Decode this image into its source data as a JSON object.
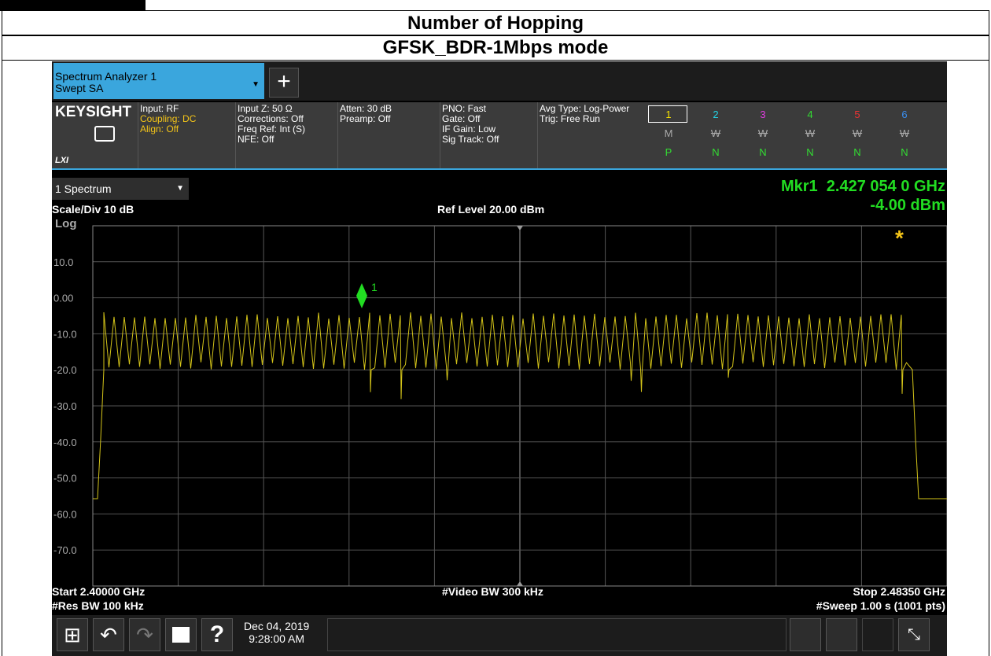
{
  "header": {
    "title": "Number of Hopping",
    "subtitle": "GFSK_BDR-1Mbps mode"
  },
  "app": {
    "tab_title": "Spectrum Analyzer 1",
    "tab_subtitle": "Swept SA",
    "brand": "KEYSIGHT",
    "lxi": "LXI"
  },
  "settings": [
    [
      "Input: RF",
      "Coupling: DC",
      "Align: Off"
    ],
    [
      "Input Z: 50 Ω",
      "Corrections: Off",
      "Freq Ref: Int (S)",
      "NFE: Off"
    ],
    [
      "Atten: 30 dB",
      "Preamp: Off"
    ],
    [
      "PNO: Fast",
      "Gate: Off",
      "IF Gain: Low",
      "Sig Track: Off"
    ],
    [
      "Avg Type: Log-Power",
      "Trig: Free Run"
    ]
  ],
  "traces": {
    "numbers": [
      "1",
      "2",
      "3",
      "4",
      "5",
      "6"
    ],
    "modes": [
      "M",
      "W",
      "W",
      "W",
      "W",
      "W"
    ],
    "detectors": [
      "P",
      "N",
      "N",
      "N",
      "N",
      "N"
    ]
  },
  "window": "1 Spectrum",
  "marker": {
    "readout": "Mkr1  2.427 054 0 GHz",
    "level": "-4.00 dBm",
    "label": "1"
  },
  "scale": "Scale/Div 10 dB",
  "ref_level": "Ref Level 20.00 dBm",
  "log": "Log",
  "y_labels": [
    "10.0",
    "0.00",
    "-10.0",
    "-20.0",
    "-30.0",
    "-40.0",
    "-50.0",
    "-60.0",
    "-70.0"
  ],
  "footer": {
    "start": "Start 2.40000 GHz",
    "vbw": "#Video BW 300 kHz",
    "stop": "Stop 2.48350 GHz",
    "rbw": "#Res BW 100 kHz",
    "sweep": "#Sweep 1.00 s (1001 pts)"
  },
  "datetime": [
    "Dec 04, 2019",
    "9:28:00 AM"
  ]
}
